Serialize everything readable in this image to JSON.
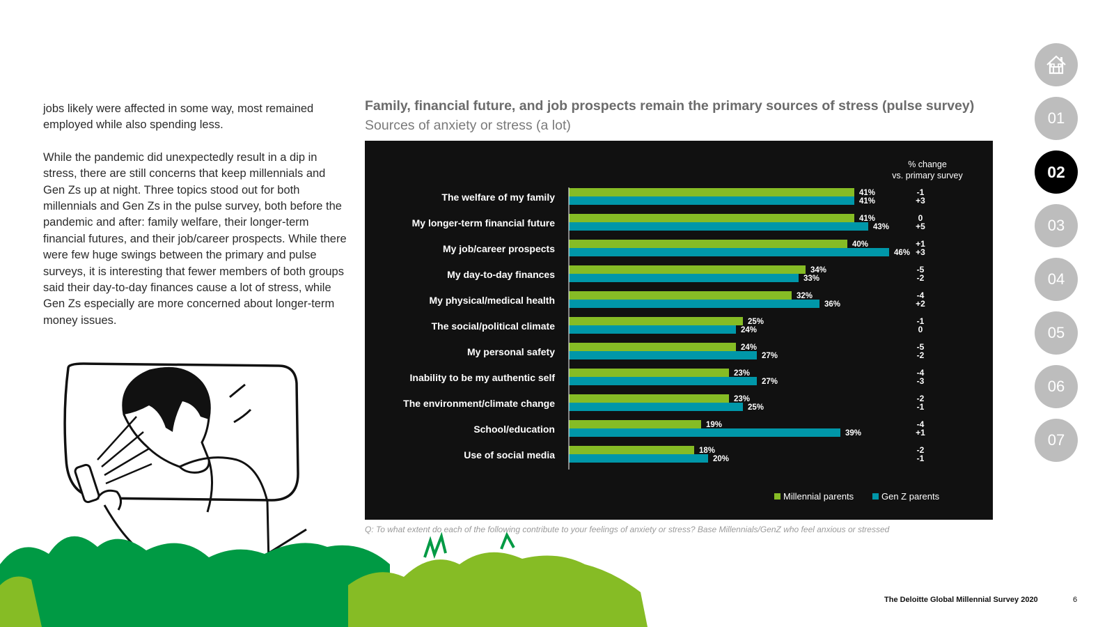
{
  "body": {
    "paragraph1": "jobs likely were affected in some way, most remained employed while also spending less.",
    "paragraph2": "While the pandemic did unexpectedly result in a dip in stress, there are still concerns that keep millennials and Gen Zs up at night. Three topics stood out for both millennials and Gen Zs in the pulse survey, both before the pandemic and after: family welfare, their longer-term financial futures, and their job/career prospects. While there were few huge swings between the primary and pulse surveys, it is interesting that fewer members of both groups said their day-to-day finances cause a lot of stress, while Gen Zs especially are more concerned about longer-term money issues."
  },
  "chart_data": {
    "type": "bar",
    "orientation": "horizontal",
    "title": "Family, financial future, and job prospects remain the primary sources of stress (pulse survey)",
    "subtitle": "Sources of anxiety or stress (a lot)",
    "change_header_line1": "% change",
    "change_header_line2": "vs. primary survey",
    "xlim": [
      0,
      50
    ],
    "categories": [
      "The welfare of my family",
      "My longer-term financial future",
      "My job/career prospects",
      "My day-to-day finances",
      "My physical/medical health",
      "The social/political climate",
      "My personal safety",
      "Inability to be my authentic self",
      "The environment/climate change",
      "School/education",
      "Use of social media"
    ],
    "series": [
      {
        "name": "Millennial parents",
        "color": "#86bc25",
        "values": [
          41,
          41,
          40,
          34,
          32,
          25,
          24,
          23,
          23,
          19,
          18
        ],
        "labels": [
          "41%",
          "41%",
          "40%",
          "34%",
          "32%",
          "25%",
          "24%",
          "23%",
          "23%",
          "19%",
          "18%"
        ],
        "change": [
          "-1",
          "0",
          "+1",
          "-5",
          "-4",
          "-1",
          "-5",
          "-4",
          "-2",
          "-4",
          "-2"
        ]
      },
      {
        "name": "Gen Z parents",
        "color": "#0097a9",
        "values": [
          41,
          43,
          46,
          33,
          36,
          24,
          27,
          27,
          25,
          39,
          20
        ],
        "labels": [
          "41%",
          "43%",
          "46%",
          "33%",
          "36%",
          "24%",
          "27%",
          "27%",
          "25%",
          "39%",
          "20%"
        ],
        "change": [
          "+3",
          "+5",
          "+3",
          "-2",
          "+2",
          "0",
          "-2",
          "-3",
          "-1",
          "+1",
          "-1"
        ]
      }
    ]
  },
  "footnote": "Q: To what extent do each of the following contribute to your feelings of anxiety or stress? Base Millennials/GenZ who feel anxious or stressed",
  "nav": {
    "home_icon": "home-icon",
    "items": [
      {
        "label": "01",
        "active": false
      },
      {
        "label": "02",
        "active": true
      },
      {
        "label": "03",
        "active": false
      },
      {
        "label": "04",
        "active": false
      },
      {
        "label": "05",
        "active": false
      },
      {
        "label": "06",
        "active": false
      },
      {
        "label": "07",
        "active": false
      }
    ]
  },
  "footer": {
    "title": "The Deloitte Global Millennial Survey 2020",
    "page": "6"
  },
  "colors": {
    "green_dark": "#009a44",
    "green_light": "#86bc25",
    "teal": "#0097a9",
    "panel": "#111111",
    "nav_inactive": "#bdbdbd",
    "nav_active": "#000000"
  }
}
